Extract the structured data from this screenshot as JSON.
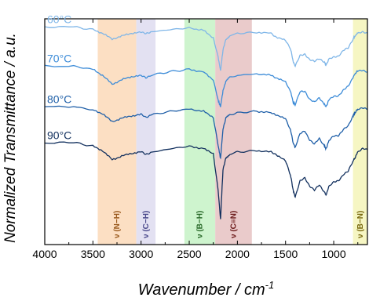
{
  "chart_data": {
    "type": "line",
    "title": "",
    "xlabel": "Wavenumber / cm",
    "xlabel_superscript": "-1",
    "ylabel": "Normalized Transmittance / a.u.",
    "xlim": [
      4000,
      650
    ],
    "x_reversed": true,
    "ylim": [
      0,
      5
    ],
    "y_ticks_shown": false,
    "x_ticks": [
      4000,
      3500,
      3000,
      2500,
      2000,
      1500,
      1000
    ],
    "x_tick_labels": [
      "4000",
      "3500",
      "3000",
      "2500",
      "2000",
      "1500",
      "1000"
    ],
    "grid": false,
    "legend": "none",
    "bands": [
      {
        "label": "ν (N−H)",
        "x_start": 3450,
        "x_end": 3050,
        "fill": "#fbd9b8",
        "text_color": "#9a5a1e"
      },
      {
        "label": "ν (C−H)",
        "x_start": 3050,
        "x_end": 2850,
        "fill": "#dedcf0",
        "text_color": "#4b4a8c"
      },
      {
        "label": "ν (B−H)",
        "x_start": 2550,
        "x_end": 2230,
        "fill": "#c6f2c6",
        "text_color": "#2a6a2a"
      },
      {
        "label": "ν (C≡N)",
        "x_start": 2230,
        "x_end": 1850,
        "fill": "#e6c2c2",
        "text_color": "#6b1a1a"
      },
      {
        "label": "ν (B−N)",
        "x_start": 800,
        "x_end": 650,
        "fill": "#f5f5b8",
        "text_color": "#7a6a10"
      }
    ],
    "series": [
      {
        "name": "60°C",
        "color": "#7fb6e8",
        "x": [
          4000,
          3700,
          3500,
          3400,
          3300,
          3200,
          3100,
          3000,
          2950,
          2900,
          2700,
          2500,
          2350,
          2250,
          2200,
          2175,
          2150,
          2120,
          2080,
          2000,
          1800,
          1650,
          1600,
          1500,
          1450,
          1420,
          1400,
          1350,
          1300,
          1250,
          1200,
          1150,
          1100,
          1080,
          1050,
          1000,
          950,
          900,
          850,
          800,
          780,
          750,
          700,
          650
        ],
        "values": [
          4.82,
          4.82,
          4.76,
          4.68,
          4.55,
          4.62,
          4.68,
          4.7,
          4.68,
          4.71,
          4.76,
          4.8,
          4.74,
          4.58,
          4.15,
          3.85,
          4.3,
          4.55,
          4.62,
          4.68,
          4.7,
          4.68,
          4.6,
          4.52,
          4.35,
          4.05,
          3.95,
          4.18,
          4.22,
          4.1,
          4.05,
          4.12,
          4.05,
          3.98,
          4.1,
          4.15,
          4.18,
          4.3,
          4.35,
          4.55,
          4.62,
          4.68,
          4.7,
          4.68
        ]
      },
      {
        "name": "70°C",
        "color": "#3d8cd8",
        "x": [
          4000,
          3700,
          3500,
          3400,
          3300,
          3200,
          3100,
          3000,
          2950,
          2900,
          2700,
          2500,
          2350,
          2250,
          2200,
          2175,
          2150,
          2120,
          2080,
          2000,
          1800,
          1650,
          1600,
          1500,
          1450,
          1420,
          1400,
          1350,
          1300,
          1250,
          1200,
          1150,
          1100,
          1080,
          1050,
          1000,
          950,
          900,
          850,
          800,
          780,
          750,
          700,
          650
        ],
        "values": [
          3.95,
          3.95,
          3.88,
          3.75,
          3.55,
          3.65,
          3.72,
          3.74,
          3.7,
          3.75,
          3.83,
          3.88,
          3.82,
          3.65,
          3.2,
          3.05,
          3.4,
          3.62,
          3.7,
          3.75,
          3.78,
          3.75,
          3.7,
          3.6,
          3.4,
          3.15,
          3.1,
          3.38,
          3.4,
          3.22,
          3.15,
          3.25,
          3.12,
          3.05,
          3.2,
          3.28,
          3.3,
          3.42,
          3.5,
          3.7,
          3.78,
          3.85,
          3.85,
          3.82
        ]
      },
      {
        "name": "80°C",
        "color": "#1f5fa8",
        "x": [
          4000,
          3700,
          3500,
          3400,
          3300,
          3200,
          3100,
          3000,
          2950,
          2900,
          2700,
          2500,
          2350,
          2250,
          2200,
          2175,
          2150,
          2120,
          2080,
          2000,
          1800,
          1650,
          1600,
          1500,
          1450,
          1420,
          1400,
          1350,
          1300,
          1250,
          1200,
          1150,
          1100,
          1080,
          1050,
          1000,
          950,
          900,
          850,
          800,
          780,
          750,
          700,
          650
        ],
        "values": [
          3.05,
          3.06,
          2.98,
          2.9,
          2.72,
          2.8,
          2.85,
          2.88,
          2.82,
          2.87,
          2.95,
          3.0,
          2.95,
          2.82,
          2.2,
          1.9,
          2.55,
          2.8,
          2.88,
          2.92,
          2.95,
          2.92,
          2.88,
          2.78,
          2.55,
          2.25,
          2.15,
          2.45,
          2.52,
          2.32,
          2.22,
          2.35,
          2.2,
          2.12,
          2.3,
          2.4,
          2.42,
          2.55,
          2.62,
          2.85,
          2.92,
          3.0,
          3.02,
          3.0
        ]
      },
      {
        "name": "90°C",
        "color": "#12305e",
        "x": [
          4000,
          3700,
          3500,
          3400,
          3300,
          3200,
          3100,
          3000,
          2950,
          2900,
          2700,
          2500,
          2350,
          2250,
          2200,
          2175,
          2150,
          2120,
          2080,
          2000,
          1800,
          1650,
          1600,
          1500,
          1450,
          1420,
          1400,
          1350,
          1300,
          1250,
          1200,
          1150,
          1100,
          1080,
          1050,
          1000,
          950,
          900,
          850,
          800,
          780,
          750,
          700,
          650
        ],
        "values": [
          2.25,
          2.26,
          2.18,
          2.08,
          1.88,
          1.96,
          2.02,
          2.05,
          2.0,
          2.04,
          2.12,
          2.18,
          2.12,
          2.02,
          1.2,
          0.55,
          1.65,
          1.92,
          2.0,
          2.05,
          2.08,
          2.05,
          2.0,
          1.85,
          1.55,
          1.2,
          1.05,
          1.4,
          1.48,
          1.3,
          1.2,
          1.32,
          1.18,
          1.1,
          1.28,
          1.38,
          1.42,
          1.55,
          1.62,
          1.85,
          1.92,
          2.05,
          2.12,
          2.1
        ]
      }
    ]
  }
}
